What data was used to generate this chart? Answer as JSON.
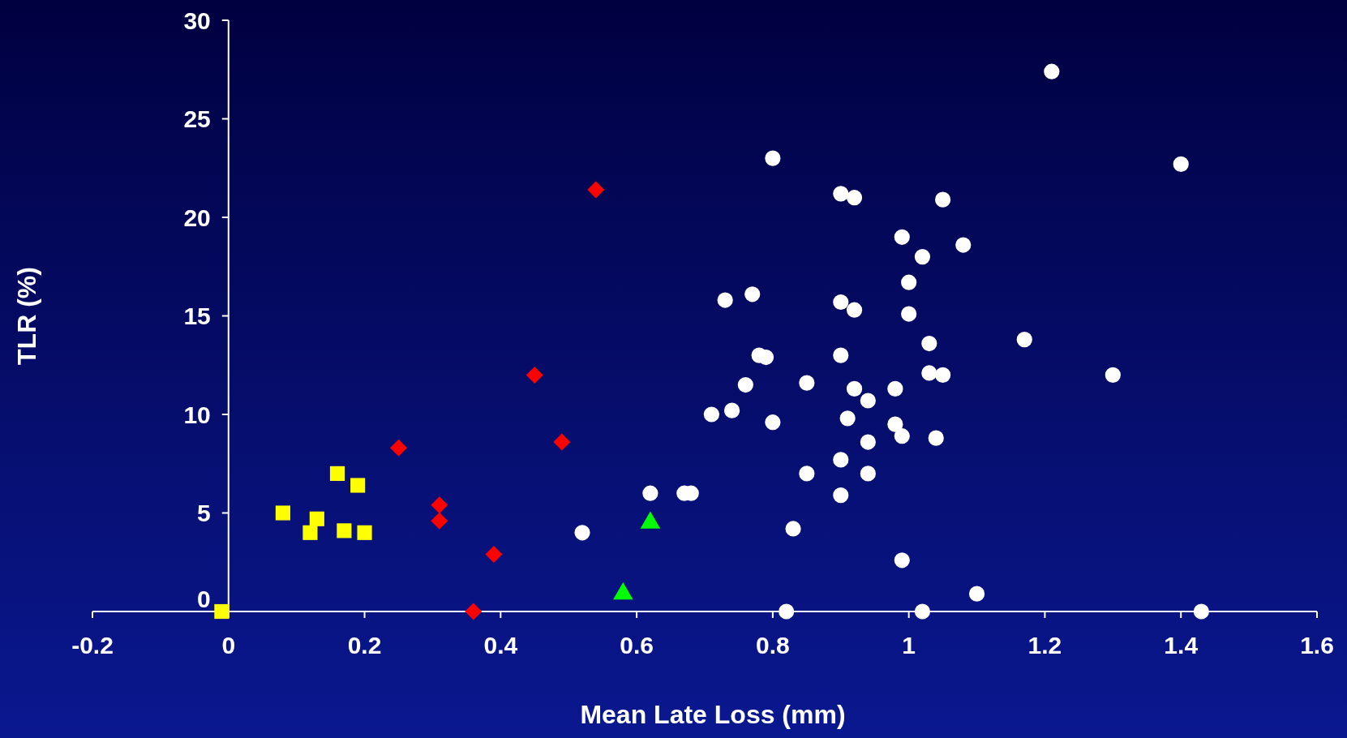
{
  "chart_data": {
    "type": "scatter",
    "xlabel": "Mean Late Loss (mm)",
    "ylabel": "TLR (%)",
    "xlim": [
      -0.2,
      1.6
    ],
    "xticks": [
      -0.2,
      0,
      0.2,
      0.4,
      0.6,
      0.8,
      1,
      1.2,
      1.4,
      1.6
    ],
    "ylim": [
      0,
      30
    ],
    "yticks": [
      0,
      5,
      10,
      15,
      20,
      25,
      30
    ],
    "grid": false,
    "series": [
      {
        "color": "#ffffff",
        "marker": "circle",
        "x": [
          0.52,
          0.62,
          0.67,
          0.68,
          0.71,
          0.73,
          0.74,
          0.76,
          0.77,
          0.78,
          0.79,
          0.8,
          0.8,
          0.82,
          0.83,
          0.85,
          0.85,
          0.9,
          0.92,
          0.9,
          0.92,
          0.9,
          0.9,
          0.9,
          0.91,
          0.92,
          0.94,
          0.94,
          0.94,
          0.98,
          0.98,
          0.99,
          0.99,
          0.99,
          1.0,
          1.0,
          1.02,
          1.02,
          1.03,
          1.03,
          1.04,
          1.05,
          1.05,
          1.08,
          1.1,
          1.17,
          1.21,
          1.3,
          1.4,
          1.43
        ],
        "values": [
          4.0,
          6.0,
          6.0,
          6.0,
          10.0,
          15.8,
          10.2,
          11.5,
          16.1,
          13.0,
          12.9,
          23.0,
          9.6,
          0,
          4.2,
          11.6,
          7.0,
          21.2,
          21.0,
          15.7,
          15.3,
          13.0,
          7.7,
          5.9,
          9.8,
          11.3,
          10.7,
          8.6,
          7.0,
          11.3,
          9.5,
          19.0,
          8.9,
          2.6,
          16.7,
          15.1,
          18.0,
          0,
          13.6,
          12.1,
          8.8,
          12.0,
          20.9,
          18.6,
          0.9,
          13.8,
          27.4,
          12.0,
          22.7,
          0
        ]
      },
      {
        "color": "#ffff00",
        "marker": "square",
        "x": [
          -0.01,
          0.08,
          0.12,
          0.13,
          0.16,
          0.17,
          0.19,
          0.2
        ],
        "values": [
          0,
          5.0,
          4.0,
          4.7,
          7.0,
          4.1,
          6.4,
          4.0
        ]
      },
      {
        "color": "#ff0000",
        "marker": "diamond",
        "x": [
          0.25,
          0.31,
          0.31,
          0.36,
          0.39,
          0.45,
          0.49,
          0.54
        ],
        "values": [
          8.3,
          5.4,
          4.6,
          0,
          2.9,
          12.0,
          8.6,
          21.4
        ]
      },
      {
        "color": "#00ff00",
        "marker": "triangle",
        "x": [
          0.58,
          0.62
        ],
        "values": [
          0.9,
          4.5
        ]
      }
    ]
  }
}
